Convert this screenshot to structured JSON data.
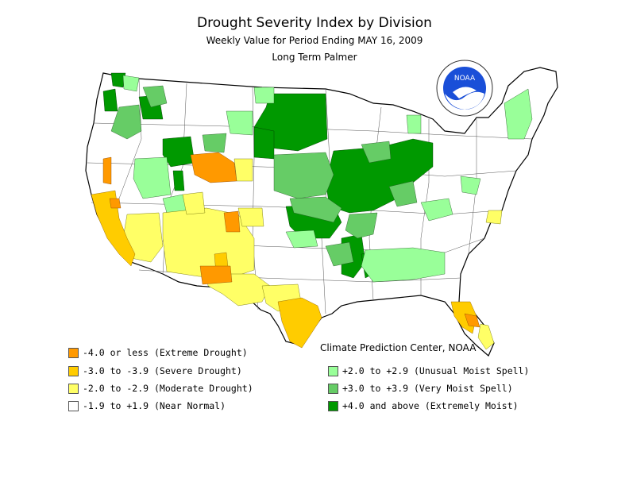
{
  "title": "Drought Severity Index by Division",
  "subtitle": "Weekly Value for Period Ending MAY 16, 2009",
  "index_name": "Long Term Palmer",
  "credit": "Climate Prediction Center, NOAA",
  "logo_text": "NOAA",
  "colors": {
    "extreme_drought": "#ff9900",
    "severe_drought": "#ffcc00",
    "moderate_drought": "#ffff66",
    "near_normal": "#ffffff",
    "unusual_moist": "#99ff99",
    "very_moist": "#66cc66",
    "extremely_moist": "#009900",
    "outline": "#000000"
  },
  "legend": {
    "extreme_drought": "-4.0 or less (Extreme Drought)",
    "severe_drought": "-3.0 to -3.9 (Severe Drought)",
    "moderate_drought": "-2.0 to -2.9 (Moderate Drought)",
    "near_normal": "-1.9 to +1.9 (Near Normal)",
    "unusual_moist": "+2.0 to +2.9 (Unusual Moist Spell)",
    "very_moist": "+3.0 to +3.9 (Very Moist Spell)",
    "extremely_moist": "+4.0 and above (Extremely Moist)"
  }
}
